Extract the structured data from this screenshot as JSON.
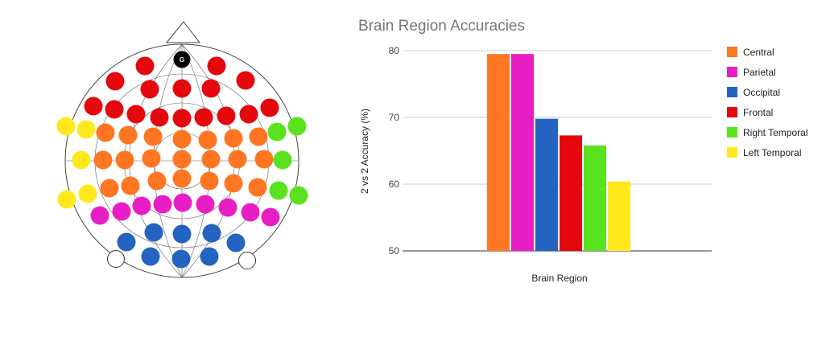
{
  "head_map": {
    "ground_label": "G",
    "region_colors": {
      "central": "#ff7622",
      "parietal": "#e81ec5",
      "occipital": "#2463c0",
      "frontal": "#e4080e",
      "right_temporal": "#5ae21e",
      "left_temporal": "#ffe81e",
      "reference": "#ffffff",
      "ground": "#000000"
    }
  },
  "chart_data": {
    "type": "bar",
    "title": "Brain Region Accuracies",
    "xlabel": "Brain Region",
    "ylabel": "2 vs 2 Accuracy (%)",
    "ylim": [
      50,
      80
    ],
    "yticks": [
      50,
      60,
      70,
      80
    ],
    "grid": true,
    "legend_position": "right",
    "series": [
      {
        "name": "Central",
        "value": 79.5,
        "color": "#ff7622"
      },
      {
        "name": "Parietal",
        "value": 79.5,
        "color": "#e81ec5"
      },
      {
        "name": "Occipital",
        "value": 69.8,
        "color": "#2463c0"
      },
      {
        "name": "Frontal",
        "value": 67.3,
        "color": "#e4080e"
      },
      {
        "name": "Right Temporal",
        "value": 65.8,
        "color": "#5ae21e"
      },
      {
        "name": "Left Temporal",
        "value": 60.4,
        "color": "#ffe81e"
      }
    ]
  }
}
